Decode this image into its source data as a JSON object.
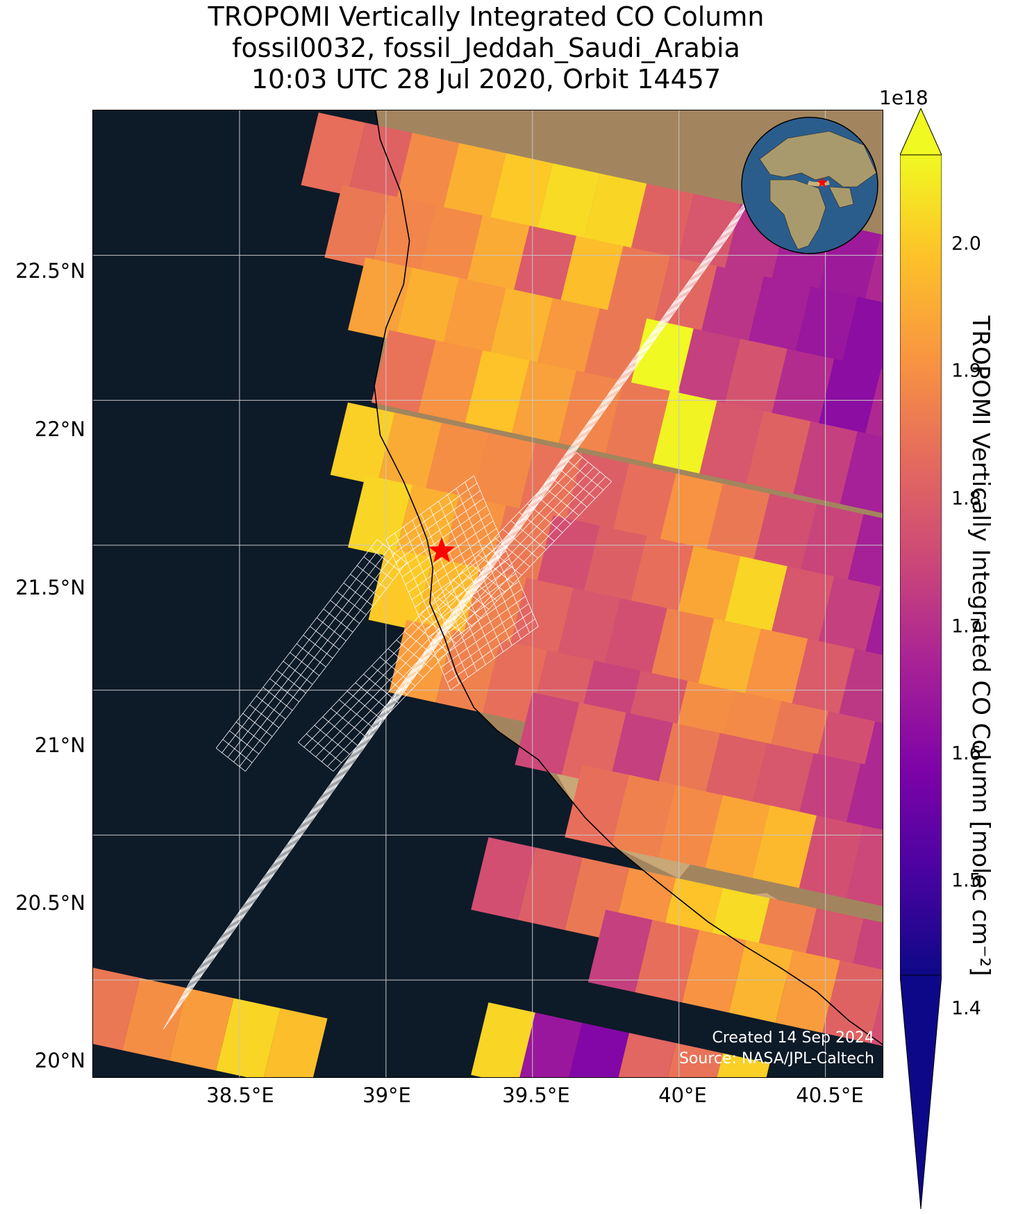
{
  "title": {
    "line1": "TROPOMI Vertically Integrated CO Column",
    "line2": "fossil0032, fossil_Jeddah_Saudi_Arabia",
    "line3": "10:03 UTC 28 Jul 2020, Orbit 14457"
  },
  "axes": {
    "lat_labels": [
      "22.5°N",
      "22°N",
      "21.5°N",
      "21°N",
      "20.5°N",
      "20°N"
    ],
    "lon_labels": [
      "38.5°E",
      "39°E",
      "39.5°E",
      "40°E",
      "40.5°E"
    ],
    "lon_range": [
      38.0,
      40.7
    ],
    "lat_range": [
      19.66,
      23.0
    ],
    "grid": true
  },
  "colorbar": {
    "label": "TROPOMI Vertically Integrated CO Column [molec cm⁻²]",
    "exponent": "1e18",
    "ticks": [
      "1.4",
      "1.5",
      "1.6",
      "1.7",
      "1.8",
      "1.9",
      "2.0"
    ],
    "tick_values": [
      1.4,
      1.5,
      1.6,
      1.7,
      1.8,
      1.9,
      2.0
    ],
    "vmin": 1.3,
    "vmax": 2.05,
    "colormap": "plasma",
    "extend": "both"
  },
  "site": {
    "name": "fossil_Jeddah_Saudi_Arabia",
    "lon": 39.19,
    "lat": 21.48,
    "marker_color": "#ff0000"
  },
  "credits": {
    "created": "Created 14 Sep 2024",
    "source": "Source: NASA/JPL-Caltech"
  },
  "inset": {
    "type": "globe",
    "marker_color": "#ff0000"
  },
  "colors": {
    "sea": "#0d1a28",
    "land": "#a2855e",
    "desert": "#c9a777",
    "coast": "#000000",
    "grid": "#c8c8c8",
    "target_grid": "#ffffff"
  },
  "chart_data": {
    "type": "heatmap",
    "units": "molec cm^-2 (x1e18)",
    "description_source": "TROPOMI pixels",
    "rows": [
      {
        "lat": 22.85,
        "lon_start": 38.82,
        "values": [
          1.78,
          1.75,
          1.84,
          1.92,
          1.97,
          2.0,
          1.99,
          1.75,
          1.72,
          1.63,
          1.58,
          1.56,
          1.6
        ]
      },
      {
        "lat": 22.6,
        "lon_start": 38.9,
        "values": [
          1.8,
          1.83,
          1.84,
          1.91,
          1.73,
          1.95,
          1.8,
          1.76,
          1.63,
          1.58,
          1.55,
          1.52,
          1.58
        ]
      },
      {
        "lat": 22.35,
        "lon_start": 38.98,
        "values": [
          1.89,
          1.92,
          1.88,
          1.93,
          1.87,
          1.8,
          2.05,
          1.66,
          1.71,
          1.61,
          1.52,
          1.6,
          1.57
        ]
      },
      {
        "lat": 22.1,
        "lon_start": 39.06,
        "values": [
          1.79,
          1.86,
          1.96,
          1.89,
          1.83,
          1.8,
          2.04,
          1.72,
          1.75,
          1.66,
          1.58,
          1.49,
          1.55
        ]
      },
      {
        "lat": 21.85,
        "lon_start": 38.92,
        "values": [
          1.98,
          1.91,
          1.85,
          1.84,
          1.79,
          1.74,
          1.78,
          1.86,
          1.8,
          1.7,
          1.67,
          1.58,
          1.55,
          1.52
        ]
      },
      {
        "lat": 21.6,
        "lon_start": 38.98,
        "values": [
          1.99,
          1.92,
          1.86,
          1.8,
          1.7,
          1.74,
          1.78,
          1.9,
          1.99,
          1.72,
          1.66,
          1.57,
          1.53,
          1.48
        ]
      },
      {
        "lat": 21.35,
        "lon_start": 39.05,
        "values": [
          1.97,
          1.94,
          1.82,
          1.76,
          1.72,
          1.7,
          1.82,
          1.93,
          1.86,
          1.73,
          1.64,
          1.52,
          1.45,
          1.36
        ]
      },
      {
        "lat": 21.1,
        "lon_start": 39.12,
        "values": [
          1.88,
          1.82,
          1.78,
          1.74,
          1.67,
          1.72,
          1.85,
          1.84,
          1.8,
          1.7,
          1.6,
          1.44,
          1.5,
          1.4
        ]
      },
      {
        "lat": 20.85,
        "lon_start": 39.55,
        "values": [
          1.68,
          1.76,
          1.66,
          1.8,
          1.74,
          1.72,
          1.66,
          1.6,
          1.56,
          1.62
        ]
      },
      {
        "lat": 20.6,
        "lon_start": 39.72,
        "values": [
          1.78,
          1.82,
          1.84,
          1.9,
          1.94,
          1.7,
          1.68,
          1.63
        ]
      },
      {
        "lat": 20.35,
        "lon_start": 39.4,
        "values": [
          1.7,
          1.74,
          1.8,
          1.86,
          1.96,
          2.0,
          1.82,
          1.72,
          1.67
        ]
      },
      {
        "lat": 20.1,
        "lon_start": 39.8,
        "values": [
          1.66,
          1.78,
          1.86,
          1.93,
          1.88,
          1.75,
          1.7
        ]
      },
      {
        "lat": 19.9,
        "lon_start": 38.05,
        "values": [
          1.8,
          1.85,
          1.88,
          1.99,
          1.95
        ]
      },
      {
        "lat": 19.78,
        "lon_start": 39.4,
        "values": [
          1.99,
          1.55,
          1.5,
          1.76,
          1.79,
          1.98
        ]
      }
    ]
  }
}
